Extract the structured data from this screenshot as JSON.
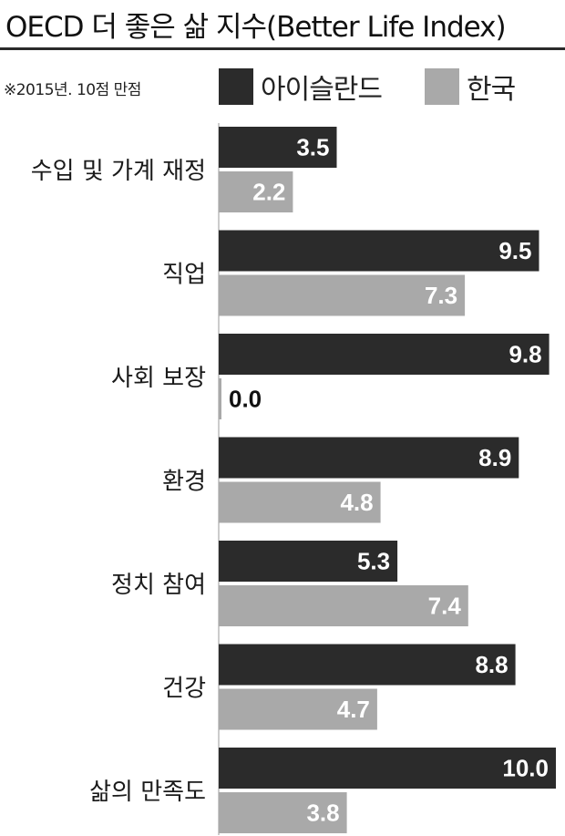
{
  "header": {
    "title": "OECD 더 좋은 삶 지수(Better Life Index)",
    "note": "※2015년. 10점 만점"
  },
  "colors": {
    "iceland": "#2b2b2b",
    "korea": "#a9a9a9",
    "axis": "#9a9a9a"
  },
  "chart_data": {
    "type": "bar",
    "orientation": "horizontal",
    "title": "OECD 더 좋은 삶 지수(Better Life Index)",
    "xlim": [
      0,
      10
    ],
    "categories": [
      "수입 및 가계 재정",
      "직업",
      "사회 보장",
      "환경",
      "정치 참여",
      "건강",
      "삶의 만족도"
    ],
    "series": [
      {
        "name": "아이슬란드",
        "values": [
          3.5,
          9.5,
          9.8,
          8.9,
          5.3,
          8.8,
          10.0
        ],
        "labels": [
          "3.5",
          "9.5",
          "9.8",
          "8.9",
          "5.3",
          "8.8",
          "10.0"
        ]
      },
      {
        "name": "한국",
        "values": [
          2.2,
          7.3,
          0.0,
          4.8,
          7.4,
          4.7,
          3.8
        ],
        "labels": [
          "2.2",
          "7.3",
          "0.0",
          "4.8",
          "7.4",
          "4.7",
          "3.8"
        ]
      }
    ],
    "legend_position": "top-right"
  }
}
